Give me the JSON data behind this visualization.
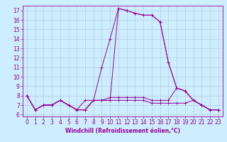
{
  "xlabel": "Windchill (Refroidissement éolien,°C)",
  "background_color": "#cceeff",
  "line_color": "#990099",
  "grid_color": "#b0c8d8",
  "xmin": -0.5,
  "xmax": 23.5,
  "ymin": 5.8,
  "ymax": 17.5,
  "line1": [
    8.0,
    6.5,
    7.0,
    7.0,
    7.5,
    7.0,
    6.5,
    6.5,
    7.5,
    7.5,
    7.5,
    17.2,
    17.0,
    16.7,
    16.5,
    16.5,
    15.8,
    11.5,
    8.8,
    8.5,
    7.5,
    7.0,
    6.5,
    6.5
  ],
  "line2": [
    8.0,
    6.5,
    7.0,
    7.0,
    7.5,
    7.0,
    6.5,
    7.5,
    7.5,
    11.0,
    14.0,
    17.2,
    17.0,
    16.7,
    16.5,
    16.5,
    15.8,
    11.5,
    8.8,
    8.5,
    7.5,
    7.0,
    6.5,
    6.5
  ],
  "line3": [
    8.0,
    6.5,
    7.0,
    7.0,
    7.5,
    7.0,
    6.5,
    6.5,
    7.5,
    7.5,
    7.5,
    7.5,
    7.5,
    7.5,
    7.5,
    7.2,
    7.2,
    7.2,
    7.2,
    7.2,
    7.5,
    7.0,
    6.5,
    6.5
  ],
  "line4": [
    8.0,
    6.5,
    7.0,
    7.0,
    7.5,
    7.0,
    6.5,
    6.5,
    7.5,
    7.5,
    7.8,
    7.8,
    7.8,
    7.8,
    7.8,
    7.5,
    7.5,
    7.5,
    8.8,
    8.5,
    7.5,
    7.0,
    6.5,
    6.5
  ],
  "yticks": [
    6,
    7,
    8,
    9,
    10,
    11,
    12,
    13,
    14,
    15,
    16,
    17
  ],
  "xticks": [
    0,
    1,
    2,
    3,
    4,
    5,
    6,
    7,
    8,
    9,
    10,
    11,
    12,
    13,
    14,
    15,
    16,
    17,
    18,
    19,
    20,
    21,
    22,
    23
  ],
  "tick_fontsize": 5.5,
  "xlabel_fontsize": 5.5
}
